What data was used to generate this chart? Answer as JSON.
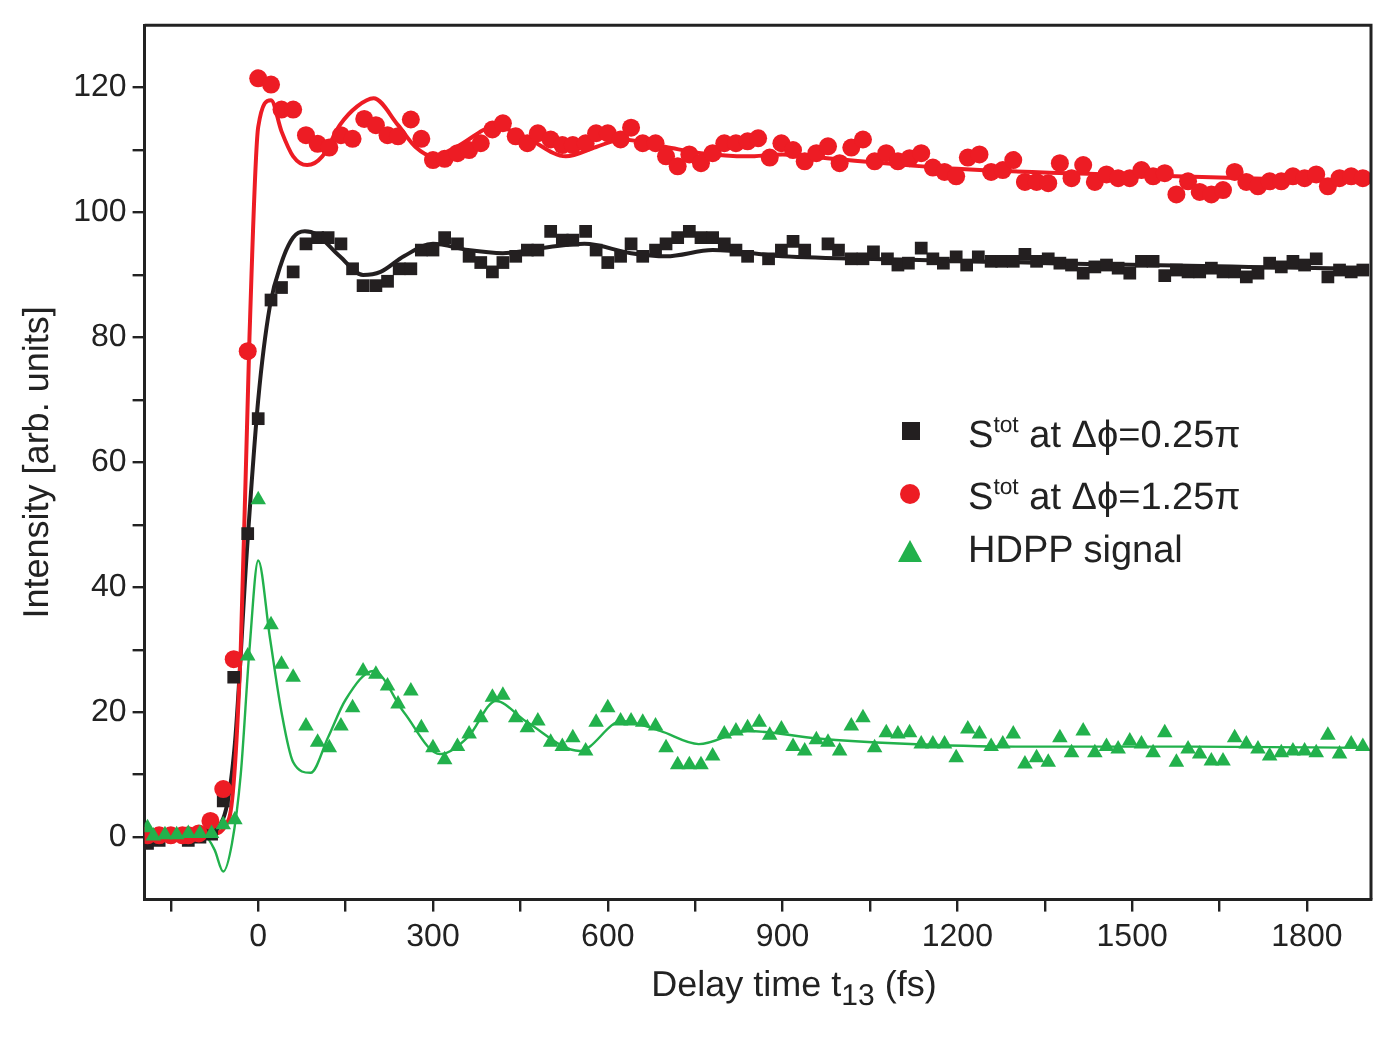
{
  "chart_data": {
    "type": "scatter",
    "xlabel": "Delay time t$_{13}$ (fs)",
    "ylabel": "Intensity [arb. units]",
    "xlim": [
      -195,
      1910
    ],
    "ylim": [
      -10,
      130
    ],
    "xticks": [
      {
        "value": -150,
        "label": null
      },
      0,
      {
        "value": 150,
        "label": null
      },
      300,
      {
        "value": 450,
        "label": null
      },
      600,
      {
        "value": 750,
        "label": null
      },
      900,
      {
        "value": 1050,
        "label": null
      },
      1200,
      {
        "value": 1350,
        "label": null
      },
      1500,
      {
        "value": 1650,
        "label": null
      },
      1800
    ],
    "yticks": [
      0,
      {
        "value": 10,
        "label": null
      },
      20,
      {
        "value": 30,
        "label": null
      },
      40,
      {
        "value": 50,
        "label": null
      },
      60,
      {
        "value": 70,
        "label": null
      },
      80,
      {
        "value": 90,
        "label": null
      },
      100,
      {
        "value": 110,
        "label": null
      },
      120
    ],
    "grid": false,
    "legend": "right",
    "series": [
      {
        "name": "S$^{tot}$ at Δϕ=0.25π",
        "type": "scatter",
        "marker": "square",
        "color": "#231f20",
        "x": [
          -190,
          -170,
          -120,
          -100,
          -80,
          -60,
          -42,
          -18,
          0,
          22,
          40,
          60,
          82,
          102,
          120,
          142,
          162,
          180,
          202,
          222,
          242,
          262,
          280,
          300,
          320,
          342,
          362,
          382,
          402,
          420,
          442,
          462,
          480,
          502,
          522,
          540,
          562,
          580,
          600,
          622,
          640,
          660,
          682,
          700,
          720,
          740,
          760,
          780,
          800,
          820,
          840,
          876,
          898,
          918,
          938,
          978,
          996,
          1018,
          1038,
          1056,
          1080,
          1098,
          1116,
          1138,
          1158,
          1176,
          1198,
          1216,
          1236,
          1258,
          1276,
          1296,
          1316,
          1336,
          1356,
          1376,
          1396,
          1416,
          1436,
          1456,
          1476,
          1496,
          1516,
          1536,
          1556,
          1576,
          1596,
          1616,
          1636,
          1656,
          1676,
          1696,
          1716,
          1736,
          1756,
          1776,
          1796,
          1816,
          1836,
          1856,
          1876,
          1896
        ],
        "values": [
          -1,
          -0.5,
          -0.5,
          0,
          0.5,
          5.8,
          25.6,
          48.6,
          67,
          86,
          88,
          90.5,
          95,
          96,
          96,
          95,
          91,
          88.3,
          88.3,
          89,
          91,
          91,
          94,
          94,
          96,
          95,
          93,
          92,
          90.5,
          92,
          93,
          94,
          94,
          97,
          95.6,
          95.6,
          97,
          94,
          92,
          93,
          95,
          93,
          94,
          95,
          96,
          97,
          96,
          96,
          95,
          94,
          93,
          92.6,
          94,
          95.4,
          94,
          95,
          94,
          92.6,
          92.6,
          93.7,
          92.6,
          91.6,
          91.9,
          94.3,
          92.6,
          91.9,
          92.9,
          91.6,
          92.9,
          92.2,
          92.2,
          92.2,
          93.3,
          92.2,
          92.6,
          91.9,
          91.6,
          90.3,
          91.3,
          91.6,
          91.1,
          90.3,
          92.2,
          92.2,
          89.9,
          90.8,
          90.5,
          90.5,
          91.1,
          90.5,
          90.5,
          89.7,
          90.3,
          91.9,
          91.3,
          92.2,
          91.6,
          92.6,
          89.7,
          90.8,
          90.5,
          90.8
        ]
      },
      {
        "name": "S$^{tot}$ at Δϕ=1.25π",
        "type": "scatter",
        "marker": "circle",
        "color": "#ed1c24",
        "x": [
          -190,
          -170,
          -150,
          -130,
          -120,
          -102,
          -82,
          -60,
          -42,
          -18,
          0,
          22,
          40,
          60,
          82,
          102,
          122,
          142,
          162,
          182,
          202,
          222,
          240,
          262,
          280,
          300,
          320,
          342,
          362,
          382,
          402,
          420,
          442,
          462,
          480,
          502,
          522,
          540,
          562,
          580,
          600,
          622,
          640,
          660,
          682,
          700,
          720,
          740,
          760,
          780,
          800,
          820,
          840,
          858,
          878,
          898,
          918,
          938,
          958,
          978,
          998,
          1018,
          1038,
          1058,
          1078,
          1098,
          1118,
          1138,
          1158,
          1178,
          1198,
          1218,
          1238,
          1258,
          1278,
          1296,
          1316,
          1336,
          1356,
          1376,
          1396,
          1416,
          1436,
          1456,
          1476,
          1496,
          1516,
          1536,
          1556,
          1576,
          1596,
          1616,
          1636,
          1656,
          1676,
          1696,
          1716,
          1736,
          1756,
          1776,
          1796,
          1816,
          1836,
          1856,
          1876,
          1896
        ],
        "values": [
          0.3,
          0.3,
          0.3,
          0.3,
          0.3,
          0.6,
          2.6,
          7.7,
          28.5,
          77.8,
          121.5,
          120.5,
          116.5,
          116.5,
          112.4,
          111,
          110.4,
          112.4,
          111.8,
          115,
          114,
          112.4,
          112.2,
          114.9,
          111.8,
          108.4,
          108.6,
          109.5,
          110,
          111.1,
          113.3,
          114.3,
          112.2,
          111.1,
          112.7,
          111.7,
          110.8,
          110.8,
          111.1,
          112.7,
          112.7,
          111.7,
          113.6,
          111.1,
          111.1,
          109,
          107.4,
          109.3,
          107.9,
          109.5,
          111.1,
          111.1,
          111.4,
          111.9,
          108.8,
          111.1,
          110,
          108.2,
          109.5,
          110.6,
          107.9,
          110.4,
          111.7,
          108.2,
          109.5,
          108.2,
          108.7,
          109.5,
          107.2,
          106.5,
          105.8,
          108.8,
          109.3,
          106.5,
          106.8,
          108.4,
          104.9,
          104.9,
          104.7,
          107.9,
          105.5,
          107.6,
          104.9,
          106.1,
          105.5,
          105.5,
          106.8,
          105.8,
          106.3,
          102.9,
          105,
          103.3,
          102.9,
          103.6,
          106.5,
          104.9,
          104.2,
          105,
          105,
          105.8,
          105.5,
          106.1,
          104.2,
          105.5,
          105.8,
          105.5
        ]
      },
      {
        "name": "HDPP signal",
        "type": "scatter",
        "marker": "triangle",
        "color": "#22b14c",
        "x": [
          -190,
          -180,
          -160,
          -140,
          -120,
          -100,
          -80,
          -60,
          -40,
          -18,
          0,
          22,
          40,
          60,
          82,
          102,
          122,
          142,
          162,
          180,
          202,
          222,
          240,
          262,
          280,
          300,
          320,
          342,
          362,
          382,
          402,
          420,
          442,
          462,
          480,
          502,
          522,
          540,
          562,
          580,
          600,
          622,
          640,
          660,
          682,
          700,
          720,
          740,
          760,
          780,
          800,
          820,
          840,
          860,
          878,
          898,
          918,
          938,
          958,
          978,
          998,
          1018,
          1038,
          1058,
          1078,
          1098,
          1118,
          1138,
          1158,
          1178,
          1198,
          1218,
          1238,
          1258,
          1278,
          1296,
          1316,
          1336,
          1356,
          1376,
          1396,
          1416,
          1436,
          1456,
          1476,
          1496,
          1516,
          1536,
          1556,
          1576,
          1596,
          1616,
          1636,
          1656,
          1676,
          1696,
          1716,
          1736,
          1756,
          1776,
          1796,
          1816,
          1836,
          1856,
          1876,
          1896
        ],
        "values": [
          1.5,
          0.2,
          0.4,
          0.4,
          0.6,
          0.6,
          0.6,
          2,
          2.8,
          29,
          54,
          34,
          27.7,
          25.6,
          17.8,
          15.2,
          14.3,
          17.8,
          20.7,
          26.6,
          26.1,
          24.2,
          21.3,
          23.4,
          17.5,
          14.3,
          12.4,
          14.5,
          16.5,
          19.1,
          22.4,
          22.7,
          19.1,
          17.5,
          18.6,
          15.2,
          14.5,
          15.9,
          13.8,
          18.4,
          20.7,
          18.6,
          18.6,
          18.4,
          17.8,
          14.3,
          11.6,
          11.6,
          11.6,
          13,
          16.5,
          17,
          17.5,
          18.4,
          16.3,
          17.3,
          14.5,
          13.8,
          15.6,
          15.2,
          13.8,
          17.8,
          19.1,
          14.3,
          16.7,
          16.5,
          16.7,
          14.9,
          14.9,
          14.9,
          12.7,
          17.3,
          16.5,
          14.5,
          14.9,
          16.5,
          11.7,
          12.7,
          12,
          15.9,
          13.5,
          17,
          13.5,
          14.5,
          14.1,
          15.4,
          14.9,
          13.5,
          16.7,
          12,
          14.1,
          13.3,
          12.2,
          12.2,
          15.9,
          14.9,
          14.1,
          13,
          13.5,
          13.8,
          13.8,
          13.5,
          16.3,
          13.3,
          14.9,
          14.5
        ]
      },
      {
        "type": "line",
        "marker": "none",
        "color": "#231f20",
        "x": [
          -190,
          -100,
          -60,
          -40,
          -20,
          0,
          20,
          40,
          60,
          80,
          100,
          140,
          180,
          210,
          250,
          300,
          360,
          420,
          500,
          560,
          640,
          700,
          780,
          900,
          1100,
          1400,
          1700,
          1900
        ],
        "values": [
          0,
          0,
          3,
          15,
          45,
          70,
          85,
          92,
          96,
          97,
          96.5,
          93,
          90,
          90.5,
          93,
          95,
          94,
          93.5,
          94.5,
          95,
          93.5,
          93,
          94,
          93,
          92.5,
          91.8,
          91.3,
          91
        ]
      },
      {
        "type": "line",
        "marker": "none",
        "color": "#ed1c24",
        "x": [
          -190,
          -80,
          -50,
          -30,
          -15,
          0,
          22,
          40,
          60,
          84,
          110,
          140,
          170,
          198,
          240,
          270,
          300,
          340,
          408,
          460,
          528,
          580,
          624,
          700,
          760,
          840,
          900,
          1000,
          1200,
          1500,
          1900
        ],
        "values": [
          0,
          0.5,
          3,
          30,
          80,
          113.7,
          118,
          113,
          109,
          107.6,
          109,
          114,
          117,
          118.3,
          114,
          110.5,
          109,
          110.5,
          113.8,
          112,
          109,
          110.5,
          111.7,
          110.5,
          109.5,
          109,
          109.3,
          108.5,
          107,
          106,
          105
        ]
      },
      {
        "type": "line",
        "marker": "none",
        "color": "#22b14c",
        "x": [
          -190,
          -90,
          -75,
          -60,
          -45,
          -30,
          -15,
          0,
          20,
          40,
          60,
          90,
          120,
          150,
          198,
          250,
          312,
          360,
          408,
          460,
          552,
          624,
          690,
          756,
          840,
          960,
          1100,
          1300,
          1600,
          1900
        ],
        "values": [
          0.5,
          0,
          -2,
          -5.5,
          -1,
          10,
          30,
          44.3,
          32,
          20,
          12,
          10.3,
          16,
          22,
          26.6,
          20,
          13.3,
          16,
          21.8,
          18.5,
          13.8,
          18.6,
          17,
          14.9,
          17,
          15.8,
          15,
          14.5,
          14.5,
          14.3
        ]
      }
    ]
  }
}
